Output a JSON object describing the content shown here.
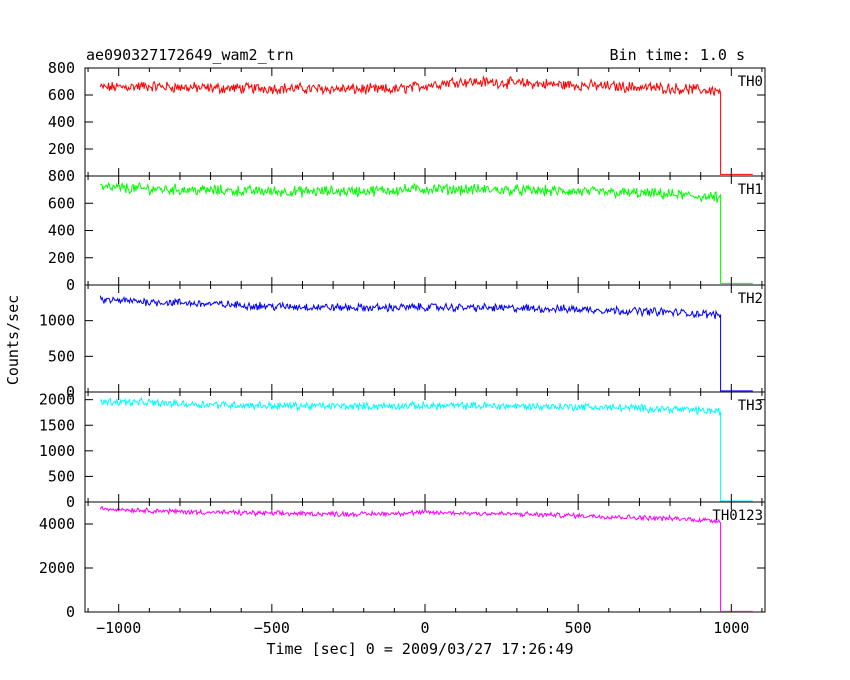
{
  "chart_data": {
    "type": "line",
    "title": "ae090327172649_wam2_trn",
    "subtitle": "Bin time: 1.0 s",
    "xlabel": "Time [sec] 0 = 2009/03/27 17:26:49",
    "ylabel": "Counts/sec",
    "xlim": [
      -1110,
      1110
    ],
    "xticks": [
      -1000,
      -500,
      0,
      500,
      1000
    ],
    "xtick_labels": [
      "−1000",
      "−500",
      "0",
      "500",
      "1000"
    ],
    "grid": false,
    "panels": [
      {
        "name": "TH0",
        "color": "#ff0000",
        "ylim": [
          0,
          800
        ],
        "yticks": [
          200,
          400,
          600,
          800
        ],
        "data_x": [
          -1060,
          -900,
          -700,
          -500,
          -300,
          -100,
          0,
          100,
          200,
          400,
          600,
          800,
          960
        ],
        "data_y": [
          655,
          665,
          650,
          650,
          645,
          640,
          670,
          700,
          695,
          680,
          665,
          650,
          630
        ],
        "noise": 32,
        "drop_x": 965,
        "post_y": 12,
        "end_x": 1070
      },
      {
        "name": "TH1",
        "color": "#00ff00",
        "ylim": [
          0,
          800
        ],
        "yticks": [
          0,
          200,
          400,
          600,
          800
        ],
        "data_x": [
          -1060,
          -800,
          -600,
          -400,
          -200,
          0,
          200,
          400,
          600,
          800,
          960
        ],
        "data_y": [
          715,
          700,
          690,
          685,
          690,
          705,
          700,
          690,
          680,
          665,
          640
        ],
        "noise": 32,
        "drop_x": 965,
        "post_y": 12,
        "end_x": 1070
      },
      {
        "name": "TH2",
        "color": "#0000ff",
        "ylim": [
          0,
          1500
        ],
        "yticks": [
          0,
          500,
          1000
        ],
        "data_x": [
          -1060,
          -800,
          -500,
          -200,
          0,
          200,
          500,
          800,
          960
        ],
        "data_y": [
          1290,
          1250,
          1200,
          1180,
          1190,
          1180,
          1160,
          1120,
          1080
        ],
        "noise": 45,
        "drop_x": 965,
        "post_y": 15,
        "end_x": 1070
      },
      {
        "name": "TH3",
        "color": "#00ffff",
        "ylim": [
          0,
          2150
        ],
        "yticks": [
          0,
          500,
          1000,
          1500,
          2000
        ],
        "data_x": [
          -1060,
          -800,
          -500,
          -200,
          0,
          200,
          500,
          800,
          960
        ],
        "data_y": [
          1970,
          1920,
          1880,
          1870,
          1880,
          1880,
          1860,
          1820,
          1770
        ],
        "noise": 60,
        "drop_x": 965,
        "post_y": 20,
        "end_x": 1070
      },
      {
        "name": "TH0123",
        "color": "#ff00ff",
        "ylim": [
          0,
          5000
        ],
        "yticks": [
          0,
          2000,
          4000
        ],
        "data_x": [
          -1060,
          -800,
          -500,
          -200,
          0,
          200,
          500,
          800,
          960
        ],
        "data_y": [
          4700,
          4560,
          4480,
          4450,
          4520,
          4480,
          4380,
          4250,
          4150
        ],
        "noise": 90,
        "drop_x": 965,
        "post_y": 30,
        "end_x": 1070
      }
    ]
  }
}
